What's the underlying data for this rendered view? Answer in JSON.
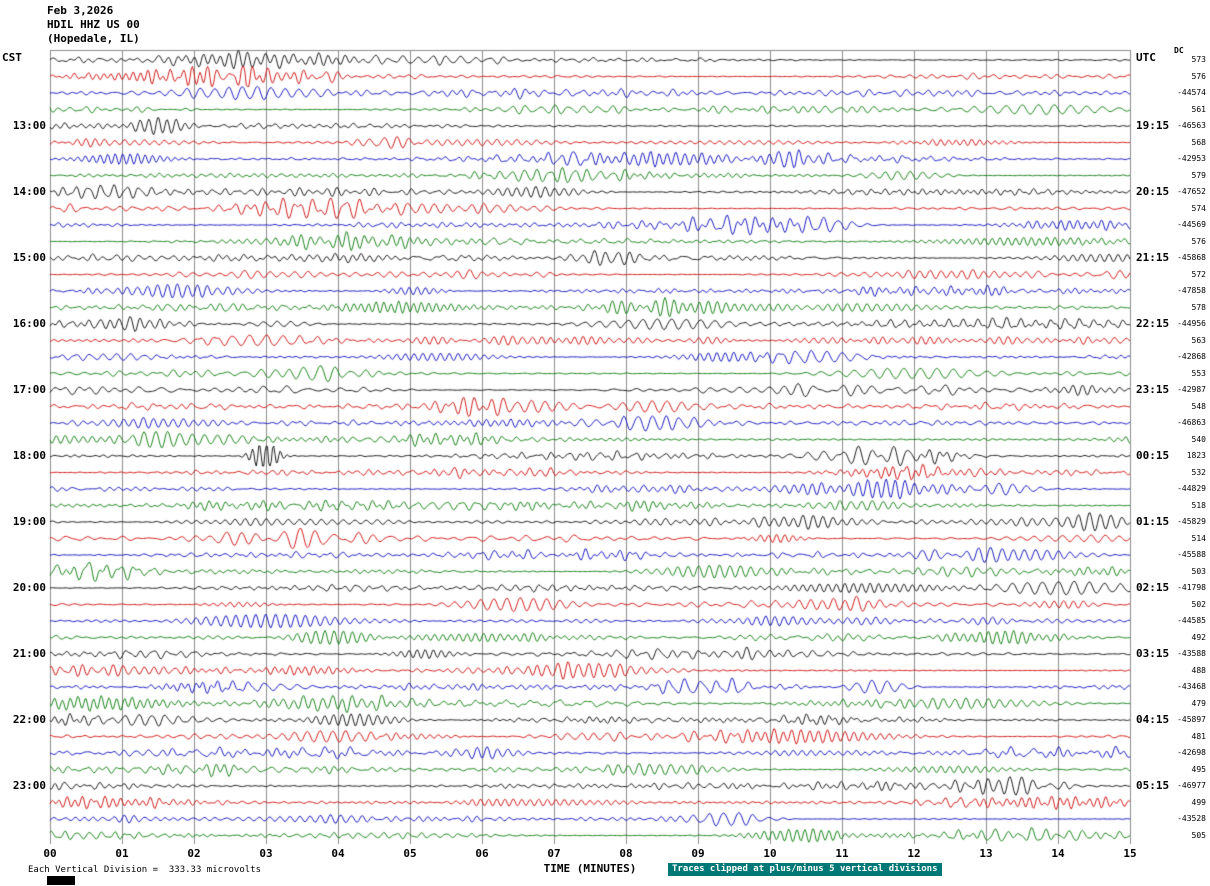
{
  "chart_data": {
    "type": "line",
    "variant": "helicorder-seismogram",
    "date": "Feb 3,2026",
    "station": "HDIL HHZ US 00",
    "location": "(Hopedale, IL)",
    "tz_left": "CST",
    "tz_right": "UTC",
    "dc_header": "DC",
    "x_axis_title": "TIME (MINUTES)",
    "scale_note": "Each Vertical Division =  333.33 microvolts",
    "clip_note": "Traces clipped at plus/minus 5 vertical divisions",
    "minutes_per_row": 15,
    "x_range_minutes": [
      0,
      15
    ],
    "grid": true,
    "x_ticks": [
      "00",
      "01",
      "02",
      "03",
      "04",
      "05",
      "06",
      "07",
      "08",
      "09",
      "10",
      "11",
      "12",
      "13",
      "14",
      "15"
    ],
    "trace_colors": {
      "black": "#000000",
      "red": "#cc0000",
      "blue": "#0000bb",
      "green": "#007700"
    },
    "rows": [
      {
        "cst": "",
        "utc": "",
        "dc": "573",
        "color": "black"
      },
      {
        "cst": "",
        "utc": "",
        "dc": "576",
        "color": "red"
      },
      {
        "cst": "",
        "utc": "",
        "dc": "-44574",
        "color": "blue"
      },
      {
        "cst": "",
        "utc": "",
        "dc": "561",
        "color": "green"
      },
      {
        "cst": "13:00",
        "utc": "19:15",
        "dc": "-46563",
        "color": "black"
      },
      {
        "cst": "",
        "utc": "",
        "dc": "568",
        "color": "red"
      },
      {
        "cst": "",
        "utc": "",
        "dc": "-42953",
        "color": "blue"
      },
      {
        "cst": "",
        "utc": "",
        "dc": "579",
        "color": "green"
      },
      {
        "cst": "14:00",
        "utc": "20:15",
        "dc": "-47652",
        "color": "black"
      },
      {
        "cst": "",
        "utc": "",
        "dc": "574",
        "color": "red"
      },
      {
        "cst": "",
        "utc": "",
        "dc": "-44569",
        "color": "blue"
      },
      {
        "cst": "",
        "utc": "",
        "dc": "576",
        "color": "green"
      },
      {
        "cst": "15:00",
        "utc": "21:15",
        "dc": "-45868",
        "color": "black"
      },
      {
        "cst": "",
        "utc": "",
        "dc": "572",
        "color": "red"
      },
      {
        "cst": "",
        "utc": "",
        "dc": "-47858",
        "color": "blue"
      },
      {
        "cst": "",
        "utc": "",
        "dc": "578",
        "color": "green"
      },
      {
        "cst": "16:00",
        "utc": "22:15",
        "dc": "-44956",
        "color": "black"
      },
      {
        "cst": "",
        "utc": "",
        "dc": "563",
        "color": "red"
      },
      {
        "cst": "",
        "utc": "",
        "dc": "-42868",
        "color": "blue"
      },
      {
        "cst": "",
        "utc": "",
        "dc": "553",
        "color": "green"
      },
      {
        "cst": "17:00",
        "utc": "23:15",
        "dc": "-42987",
        "color": "black"
      },
      {
        "cst": "",
        "utc": "",
        "dc": "548",
        "color": "red"
      },
      {
        "cst": "",
        "utc": "",
        "dc": "-46863",
        "color": "blue"
      },
      {
        "cst": "",
        "utc": "",
        "dc": "540",
        "color": "green"
      },
      {
        "cst": "18:00",
        "utc": "00:15",
        "dc": "1823",
        "color": "black"
      },
      {
        "cst": "",
        "utc": "",
        "dc": "532",
        "color": "red"
      },
      {
        "cst": "",
        "utc": "",
        "dc": "-44829",
        "color": "blue"
      },
      {
        "cst": "",
        "utc": "",
        "dc": "518",
        "color": "green"
      },
      {
        "cst": "19:00",
        "utc": "01:15",
        "dc": "-45829",
        "color": "black"
      },
      {
        "cst": "",
        "utc": "",
        "dc": "514",
        "color": "red"
      },
      {
        "cst": "",
        "utc": "",
        "dc": "-45588",
        "color": "blue"
      },
      {
        "cst": "",
        "utc": "",
        "dc": "503",
        "color": "green"
      },
      {
        "cst": "20:00",
        "utc": "02:15",
        "dc": "-41798",
        "color": "black"
      },
      {
        "cst": "",
        "utc": "",
        "dc": "502",
        "color": "red"
      },
      {
        "cst": "",
        "utc": "",
        "dc": "-44585",
        "color": "blue"
      },
      {
        "cst": "",
        "utc": "",
        "dc": "492",
        "color": "green"
      },
      {
        "cst": "21:00",
        "utc": "03:15",
        "dc": "-43588",
        "color": "black"
      },
      {
        "cst": "",
        "utc": "",
        "dc": "488",
        "color": "red"
      },
      {
        "cst": "",
        "utc": "",
        "dc": "-43468",
        "color": "blue"
      },
      {
        "cst": "",
        "utc": "",
        "dc": "479",
        "color": "green"
      },
      {
        "cst": "22:00",
        "utc": "04:15",
        "dc": "-45897",
        "color": "black"
      },
      {
        "cst": "",
        "utc": "",
        "dc": "481",
        "color": "red"
      },
      {
        "cst": "",
        "utc": "",
        "dc": "-42698",
        "color": "blue"
      },
      {
        "cst": "",
        "utc": "",
        "dc": "495",
        "color": "green"
      },
      {
        "cst": "23:00",
        "utc": "05:15",
        "dc": "-46977",
        "color": "black"
      },
      {
        "cst": "",
        "utc": "",
        "dc": "499",
        "color": "red"
      },
      {
        "cst": "",
        "utc": "",
        "dc": "-43528",
        "color": "blue"
      },
      {
        "cst": "",
        "utc": "",
        "dc": "505",
        "color": "green"
      }
    ]
  }
}
